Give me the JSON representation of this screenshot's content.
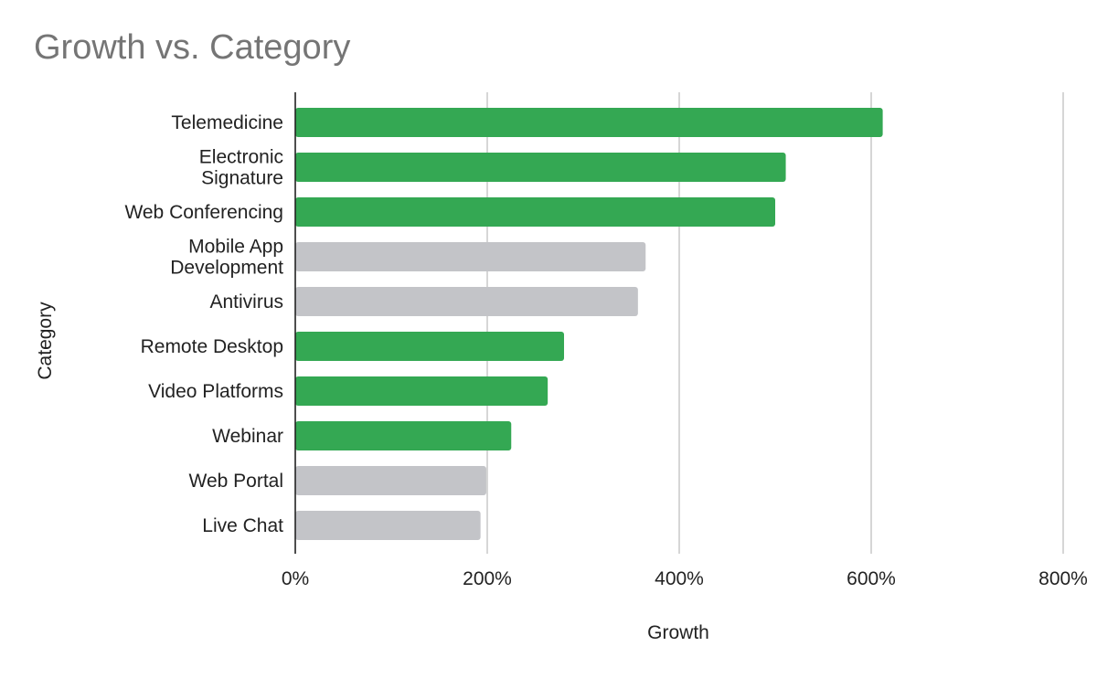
{
  "chart_data": {
    "type": "bar",
    "orientation": "horizontal",
    "title": "Growth vs. Category",
    "xlabel": "Growth",
    "ylabel": "Category",
    "xlim": [
      0,
      800
    ],
    "x_ticks": [
      0,
      200,
      400,
      600,
      800
    ],
    "x_tick_labels": [
      "0%",
      "200%",
      "400%",
      "600%",
      "800%"
    ],
    "grid": true,
    "legend": "none",
    "colors": {
      "highlight": "#34a853",
      "muted": "#c3c4c8"
    },
    "categories": [
      "Telemedicine",
      "Electronic Signature",
      "Web Conferencing",
      "Mobile App Development",
      "Antivirus",
      "Remote Desktop",
      "Video Platforms",
      "Webinar",
      "Web Portal",
      "Live Chat"
    ],
    "category_lines": [
      [
        "Telemedicine"
      ],
      [
        "Electronic",
        "Signature"
      ],
      [
        "Web Conferencing"
      ],
      [
        "Mobile App",
        "Development"
      ],
      [
        "Antivirus"
      ],
      [
        "Remote Desktop"
      ],
      [
        "Video Platforms"
      ],
      [
        "Webinar"
      ],
      [
        "Web Portal"
      ],
      [
        "Live Chat"
      ]
    ],
    "values": [
      612,
      511,
      500,
      365,
      357,
      280,
      263,
      225,
      199,
      193
    ],
    "bar_colors": [
      "highlight",
      "highlight",
      "highlight",
      "muted",
      "muted",
      "highlight",
      "highlight",
      "highlight",
      "muted",
      "muted"
    ]
  }
}
